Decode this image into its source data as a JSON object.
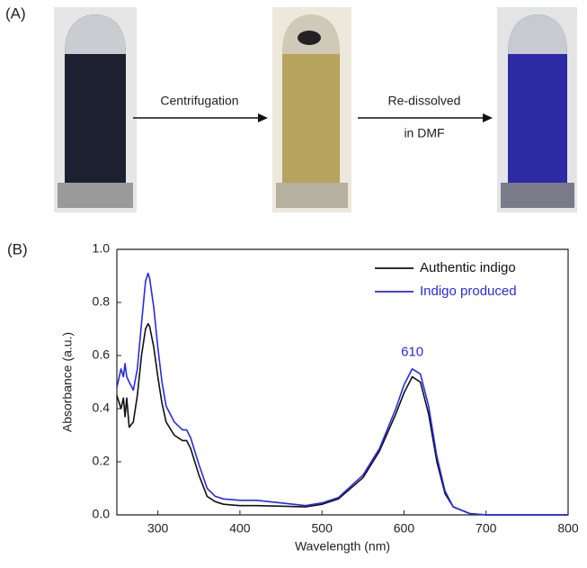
{
  "panel_a": {
    "label": "(A)",
    "steps": [
      "Centrifugation",
      "Re-dissolved in DMF"
    ],
    "step_lines": [
      [
        "Centrifugation"
      ],
      [
        "Re-dissolved",
        "in DMF"
      ]
    ]
  },
  "panel_b": {
    "label": "(B)"
  },
  "chart_data": {
    "type": "line",
    "x_label": "Wavelength (nm)",
    "y_label": "Absorbance (a.u.)",
    "x": [
      250,
      255,
      258,
      260,
      262,
      265,
      270,
      275,
      280,
      285,
      288,
      290,
      295,
      300,
      305,
      310,
      320,
      330,
      335,
      340,
      350,
      360,
      370,
      380,
      400,
      420,
      450,
      480,
      500,
      520,
      550,
      570,
      590,
      600,
      610,
      620,
      630,
      640,
      650,
      660,
      680,
      700,
      750,
      800
    ],
    "series": [
      {
        "name": "Authentic indigo",
        "color": "#111111",
        "values": [
          0.45,
          0.4,
          0.44,
          0.37,
          0.44,
          0.33,
          0.35,
          0.45,
          0.6,
          0.7,
          0.72,
          0.71,
          0.63,
          0.52,
          0.42,
          0.35,
          0.3,
          0.28,
          0.28,
          0.25,
          0.15,
          0.07,
          0.05,
          0.04,
          0.035,
          0.035,
          0.033,
          0.03,
          0.04,
          0.06,
          0.14,
          0.24,
          0.38,
          0.46,
          0.52,
          0.5,
          0.38,
          0.2,
          0.08,
          0.03,
          0.005,
          0,
          0,
          0
        ]
      },
      {
        "name": "Indigo produced",
        "color": "#2a2ae0",
        "values": [
          0.48,
          0.55,
          0.52,
          0.57,
          0.52,
          0.5,
          0.47,
          0.55,
          0.72,
          0.88,
          0.91,
          0.89,
          0.78,
          0.63,
          0.5,
          0.41,
          0.35,
          0.32,
          0.32,
          0.29,
          0.19,
          0.1,
          0.07,
          0.06,
          0.055,
          0.055,
          0.045,
          0.035,
          0.045,
          0.065,
          0.15,
          0.25,
          0.4,
          0.49,
          0.55,
          0.53,
          0.41,
          0.22,
          0.09,
          0.03,
          0.005,
          0,
          0,
          0
        ]
      }
    ],
    "annotations": [
      {
        "value": 610,
        "label": "610",
        "series": 1
      }
    ],
    "xlim": [
      250,
      800
    ],
    "ylim": [
      0,
      1.0
    ],
    "xticks": [
      300,
      400,
      500,
      600,
      700,
      800
    ],
    "yticks": [
      {
        "value": 0,
        "label": "0.0"
      },
      {
        "value": 0.2,
        "label": "0.2"
      },
      {
        "value": 0.4,
        "label": "0.4"
      },
      {
        "value": 0.6,
        "label": "0.6"
      },
      {
        "value": 0.8,
        "label": "0.8"
      },
      {
        "value": 1.0,
        "label": "1.0"
      }
    ],
    "legend": "top-right",
    "grid": false
  }
}
